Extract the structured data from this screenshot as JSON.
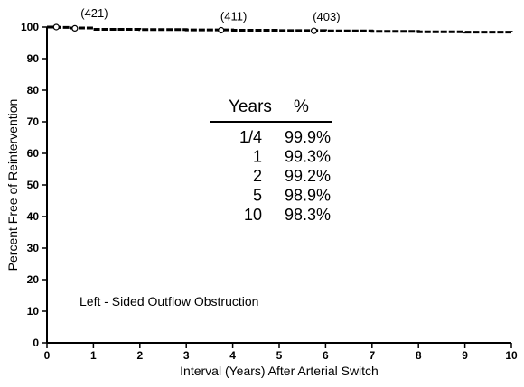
{
  "chart_data": {
    "type": "line",
    "title": "",
    "xlabel": "Interval (Years) After Arterial Switch",
    "ylabel": "Percent Free of Reintervention",
    "xlim": [
      0,
      10
    ],
    "ylim": [
      0,
      100
    ],
    "x_ticks": [
      "0",
      "1",
      "2",
      "3",
      "4",
      "5",
      "6",
      "7",
      "8",
      "9",
      "10"
    ],
    "y_ticks": [
      "0",
      "10",
      "20",
      "30",
      "40",
      "50",
      "60",
      "70",
      "80",
      "90",
      "100"
    ],
    "grid": false,
    "legend": "none",
    "series": [
      {
        "x": [
          0,
          0.25,
          0.5,
          1,
          2,
          3,
          4,
          5,
          6,
          7,
          8,
          9,
          10
        ],
        "values": [
          100,
          99.9,
          99.7,
          99.3,
          99.2,
          99.1,
          99.0,
          98.9,
          98.8,
          98.65,
          98.5,
          98.4,
          98.3
        ]
      }
    ],
    "markers": [
      {
        "x": 0.2,
        "y": 100
      },
      {
        "x": 0.6,
        "y": 99.6
      },
      {
        "x": 3.75,
        "y": 99.0
      },
      {
        "x": 5.75,
        "y": 98.8
      }
    ],
    "annotations": [
      {
        "text": "(421)",
        "x": 1.0,
        "y": 100
      },
      {
        "text": "(411)",
        "x": 4.0,
        "y": 99.0
      },
      {
        "text": "(403)",
        "x": 6.0,
        "y": 98.8
      }
    ],
    "condition_label": "Left - Sided Outflow Obstruction",
    "inset_table": {
      "headers": [
        "Years",
        "%"
      ],
      "rows": [
        [
          "1/4",
          "99.9%"
        ],
        [
          "1",
          "99.3%"
        ],
        [
          "2",
          "99.2%"
        ],
        [
          "5",
          "98.9%"
        ],
        [
          "10",
          "98.3%"
        ]
      ]
    }
  }
}
